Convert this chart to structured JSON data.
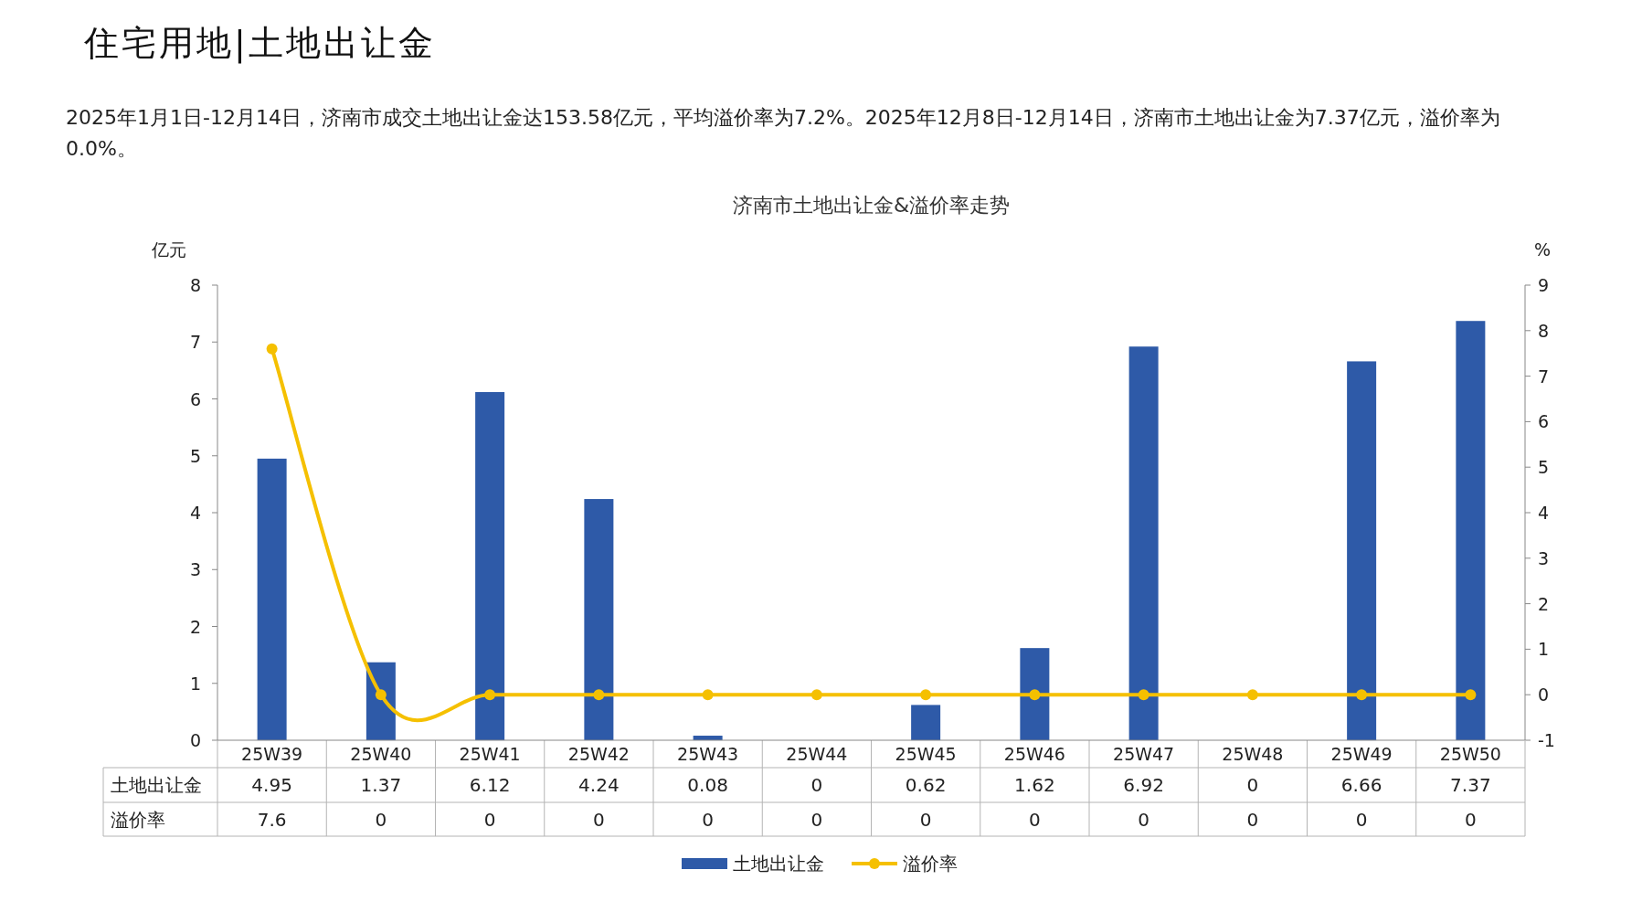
{
  "chart_data": {
    "type": "bar",
    "title": "济南市土地出让金&溢价率走势",
    "annotations": [
      "住宅用地|土地出让金",
      "2025年1月1日-12月14日，济南市成交土地出让金达153.58亿元，平均溢价率为7.2%。2025年12月8日-12月14日，济南市土地出让金为7.37亿元，溢价率为0.0%。"
    ],
    "ylabel": "亿元",
    "y2label": "%",
    "categories": [
      "25W39",
      "25W40",
      "25W41",
      "25W42",
      "25W43",
      "25W44",
      "25W45",
      "25W46",
      "25W47",
      "25W48",
      "25W49",
      "25W50"
    ],
    "series": [
      {
        "name": "土地出让金",
        "color": "#2e5aa8",
        "values": [
          4.95,
          1.37,
          6.12,
          4.24,
          0.08,
          0,
          0.62,
          1.62,
          6.92,
          0,
          6.66,
          7.37
        ]
      },
      {
        "name": "溢价率",
        "type": "line",
        "axis": "y2",
        "color": "#f5c000",
        "marker": "circle",
        "values": [
          7.6,
          0,
          0,
          0,
          0,
          0,
          0,
          0,
          0,
          0,
          0,
          0
        ]
      }
    ],
    "ylim": [
      0,
      8
    ],
    "yticks": [
      0,
      1,
      2,
      3,
      4,
      5,
      6,
      7,
      8
    ],
    "y2lim": [
      -1,
      9
    ],
    "y2ticks": [
      -1,
      0,
      1,
      2,
      3,
      4,
      5,
      6,
      7,
      8,
      9
    ],
    "data_labels": true,
    "legend": "bottom",
    "grid": false
  }
}
